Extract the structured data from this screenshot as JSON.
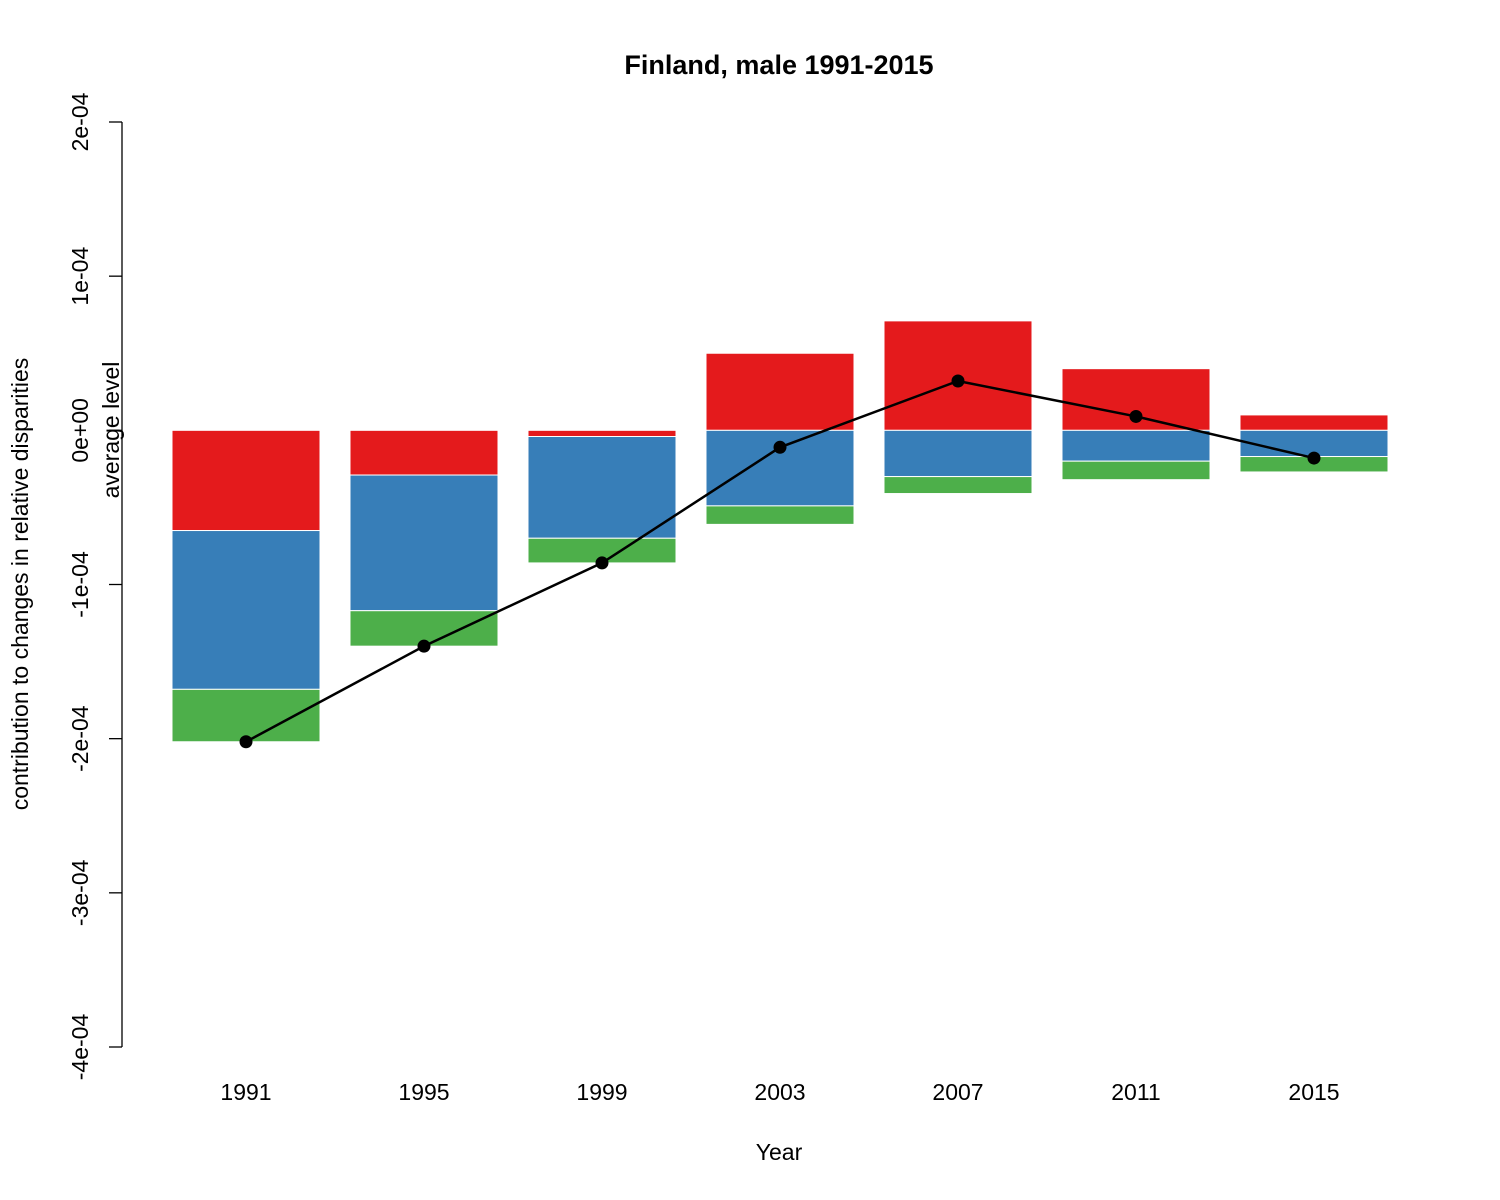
{
  "chart_data": {
    "type": "bar",
    "title": "Finland, male 1991-2015",
    "xlabel": "Year",
    "ylabel": "contribution to changes in relative disparities",
    "annotation": "average level",
    "ylim": [
      -0.0004,
      0.0002
    ],
    "yticks": [
      -0.0004,
      -0.0003,
      -0.0002,
      -0.0001,
      0,
      0.0001,
      0.0002
    ],
    "ytick_labels": [
      "-4e-04",
      "-3e-04",
      "-2e-04",
      "-1e-04",
      "0e+00",
      "1e-04",
      "2e-04"
    ],
    "categories": [
      "1991",
      "1995",
      "1999",
      "2003",
      "2007",
      "2011",
      "2015"
    ],
    "series": [
      {
        "color": "#E41A1C",
        "values": [
          -6.5e-05,
          -2.9e-05,
          -4e-06,
          5e-05,
          7.1e-05,
          4e-05,
          1e-05
        ]
      },
      {
        "color": "#377EB8",
        "values": [
          -0.000103,
          -8.8e-05,
          -6.6e-05,
          -4.9e-05,
          -3e-05,
          -2e-05,
          -1.7e-05
        ]
      },
      {
        "color": "#4DAF4A",
        "values": [
          -3.4e-05,
          -2.3e-05,
          -1.6e-05,
          -1.2e-05,
          -1.1e-05,
          -1.2e-05,
          -1e-05
        ]
      }
    ],
    "line": {
      "color": "#000000",
      "values": [
        -0.000202,
        -0.00014,
        -8.6e-05,
        -1.1e-05,
        3.2e-05,
        9e-06,
        -1.8e-05
      ]
    }
  }
}
